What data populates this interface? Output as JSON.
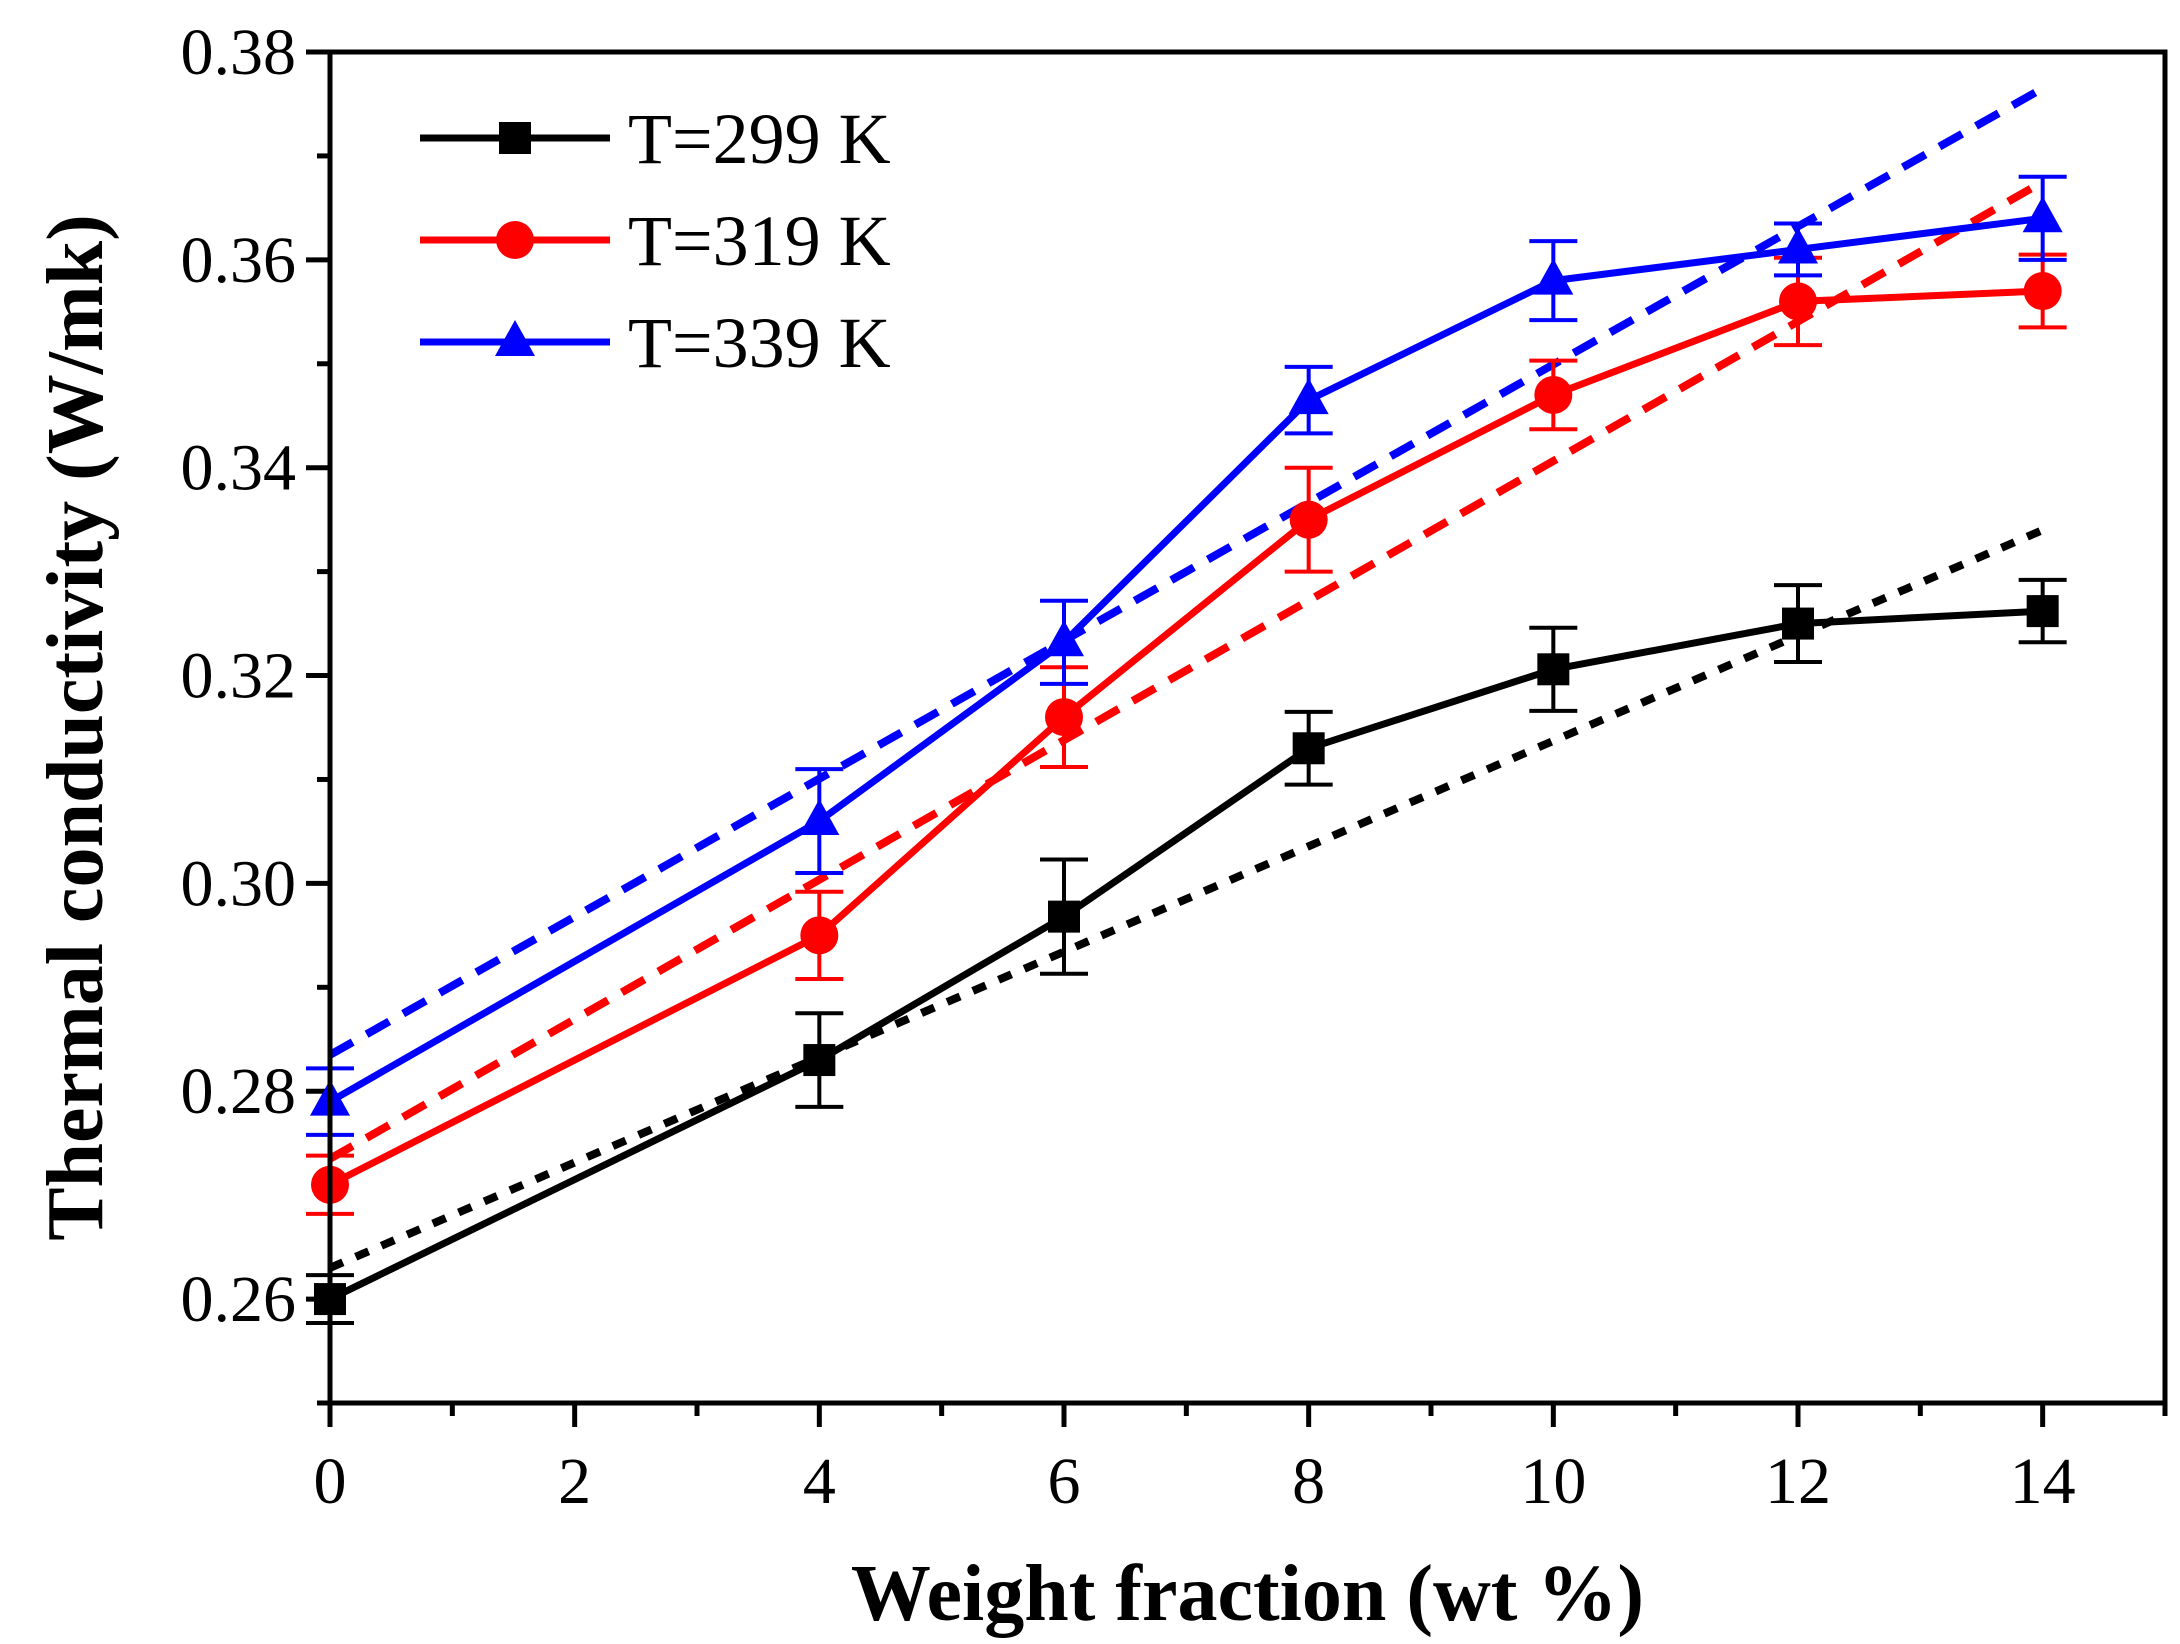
{
  "chart_data": {
    "type": "line",
    "title": "",
    "xlabel": "Weight fraction (wt %)",
    "ylabel": "Thermal conductivity (W/mk)",
    "xlim": [
      0,
      15
    ],
    "ylim": [
      0.25,
      0.38
    ],
    "x_ticks": [
      0,
      2,
      4,
      6,
      8,
      10,
      12,
      14
    ],
    "x_tick_labels": [
      "0",
      "2",
      "4",
      "6",
      "8",
      "10",
      "12",
      "14"
    ],
    "y_ticks": [
      0.26,
      0.28,
      0.3,
      0.32,
      0.34,
      0.36,
      0.38
    ],
    "y_tick_labels": [
      "0.26",
      "0.28",
      "0.30",
      "0.32",
      "0.34",
      "0.36",
      "0.38"
    ],
    "legend_position": "top-left",
    "x": [
      0,
      4,
      6,
      8,
      10,
      12,
      14
    ],
    "series": [
      {
        "name": "T=299 K",
        "color": "#000000",
        "marker": "square",
        "values": [
          0.26,
          0.283,
          0.2968,
          0.313,
          0.3206,
          0.325,
          0.3262
        ],
        "errors": [
          0.0023,
          0.0045,
          0.0055,
          0.0035,
          0.004,
          0.0037,
          0.003
        ],
        "fit": {
          "x": [
            0,
            14
          ],
          "y": [
            0.263,
            0.334
          ]
        }
      },
      {
        "name": "T=319 K",
        "color": "#ff0000",
        "marker": "circle",
        "values": [
          0.271,
          0.295,
          0.316,
          0.335,
          0.347,
          0.356,
          0.357
        ],
        "errors": [
          0.0028,
          0.0042,
          0.0048,
          0.005,
          0.0033,
          0.0042,
          0.0035
        ],
        "fit": {
          "x": [
            0,
            14
          ],
          "y": [
            0.2735,
            0.3675
          ]
        }
      },
      {
        "name": "T=339 K",
        "color": "#0000ff",
        "marker": "triangle",
        "values": [
          0.279,
          0.306,
          0.3232,
          0.3465,
          0.358,
          0.361,
          0.364
        ],
        "errors": [
          0.0032,
          0.005,
          0.004,
          0.0032,
          0.0038,
          0.0025,
          0.004
        ],
        "fit": {
          "x": [
            0,
            14
          ],
          "y": [
            0.2835,
            0.3765
          ]
        }
      }
    ]
  }
}
